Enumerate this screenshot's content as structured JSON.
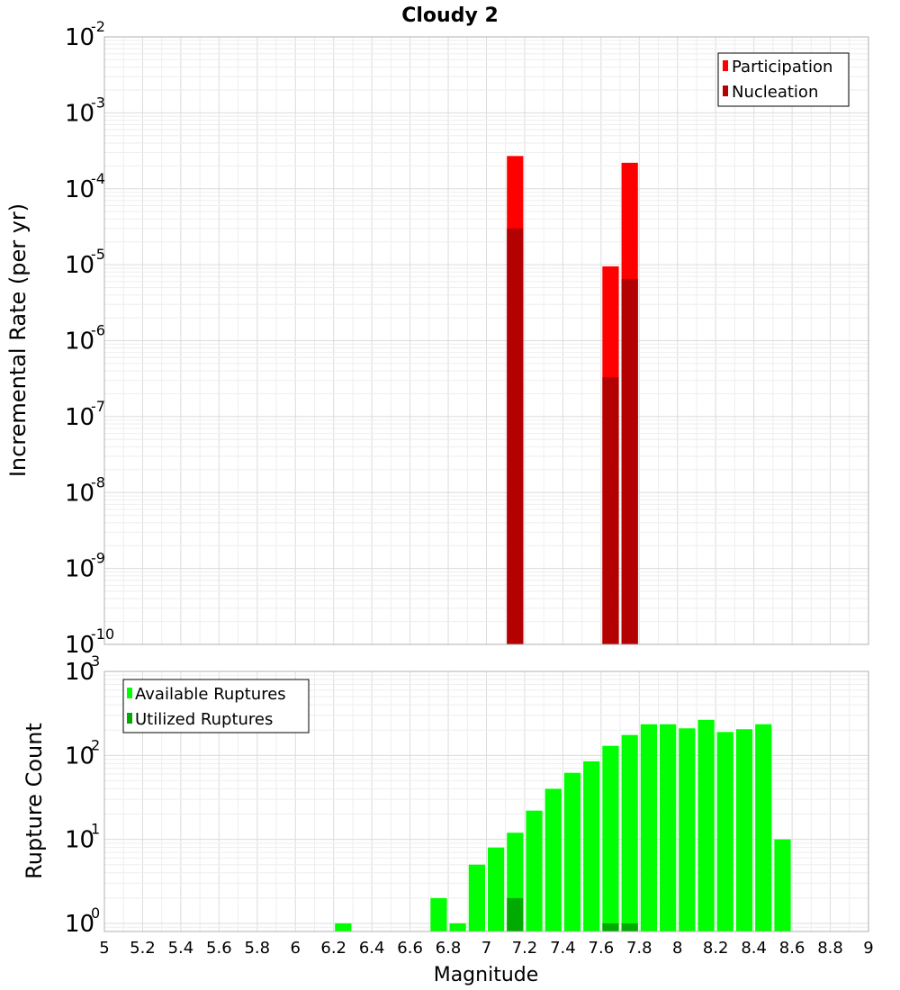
{
  "chart_data": [
    {
      "type": "bar",
      "title": "Cloudy 2",
      "ylabel": "Incremental Rate (per yr)",
      "xlabel": "",
      "y_scale": "log",
      "ylim": [
        1e-10,
        0.01
      ],
      "xlim": [
        5,
        9
      ],
      "bin_width": 0.1,
      "ytick_exponents": [
        "-10",
        "-9",
        "-8",
        "-7",
        "-6",
        "-5",
        "-4",
        "-3",
        "-2"
      ],
      "legend_position": "top-right",
      "grid": true,
      "series": [
        {
          "name": "Participation",
          "color": "#ff0000",
          "points": [
            {
              "x": 7.15,
              "y": 0.00027
            },
            {
              "x": 7.65,
              "y": 9.5e-06
            },
            {
              "x": 7.75,
              "y": 0.00022
            }
          ]
        },
        {
          "name": "Nucleation",
          "color": "#b30000",
          "points": [
            {
              "x": 7.15,
              "y": 3e-05
            },
            {
              "x": 7.65,
              "y": 3.3e-07
            },
            {
              "x": 7.75,
              "y": 6.5e-06
            }
          ]
        }
      ]
    },
    {
      "type": "bar",
      "title": "",
      "ylabel": "Rupture Count",
      "xlabel": "Magnitude",
      "y_scale": "log",
      "ylim": [
        0.8,
        1000
      ],
      "xlim": [
        5,
        9
      ],
      "bin_width": 0.1,
      "ytick_exponents": [
        "0",
        "1",
        "2",
        "3"
      ],
      "xticks": [
        "5",
        "5.2",
        "5.4",
        "5.6",
        "5.8",
        "6",
        "6.2",
        "6.4",
        "6.6",
        "6.8",
        "7",
        "7.2",
        "7.4",
        "7.6",
        "7.8",
        "8",
        "8.2",
        "8.4",
        "8.6",
        "8.8",
        "9"
      ],
      "legend_position": "top-left",
      "grid": true,
      "series": [
        {
          "name": "Available Ruptures",
          "color": "#00ff00",
          "points": [
            {
              "x": 6.25,
              "y": 1
            },
            {
              "x": 6.75,
              "y": 2
            },
            {
              "x": 6.85,
              "y": 1
            },
            {
              "x": 6.95,
              "y": 5
            },
            {
              "x": 7.05,
              "y": 8
            },
            {
              "x": 7.15,
              "y": 12
            },
            {
              "x": 7.25,
              "y": 22
            },
            {
              "x": 7.35,
              "y": 40
            },
            {
              "x": 7.45,
              "y": 62
            },
            {
              "x": 7.55,
              "y": 85
            },
            {
              "x": 7.65,
              "y": 130
            },
            {
              "x": 7.75,
              "y": 175
            },
            {
              "x": 7.85,
              "y": 235
            },
            {
              "x": 7.95,
              "y": 235
            },
            {
              "x": 8.05,
              "y": 210
            },
            {
              "x": 8.15,
              "y": 265
            },
            {
              "x": 8.25,
              "y": 190
            },
            {
              "x": 8.35,
              "y": 205
            },
            {
              "x": 8.45,
              "y": 235
            },
            {
              "x": 8.55,
              "y": 10
            }
          ]
        },
        {
          "name": "Utilized Ruptures",
          "color": "#00aa00",
          "points": [
            {
              "x": 7.15,
              "y": 2
            },
            {
              "x": 7.65,
              "y": 1
            },
            {
              "x": 7.75,
              "y": 1
            }
          ]
        }
      ]
    }
  ]
}
